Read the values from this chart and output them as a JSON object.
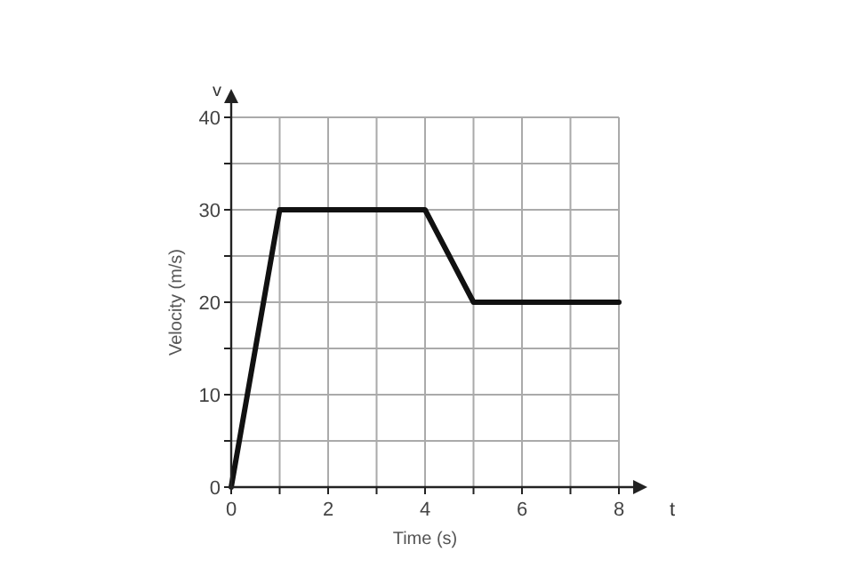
{
  "chart_data": {
    "type": "line",
    "xlabel": "Time (s)",
    "ylabel": "Velocity (m/s)",
    "annotations": [
      "v",
      "t"
    ],
    "x": [
      0,
      1,
      4,
      5,
      8
    ],
    "series": [
      {
        "color": "#111111",
        "values": [
          0,
          30,
          30,
          20,
          20
        ]
      }
    ],
    "xlim": [
      0,
      8
    ],
    "ylim": [
      0,
      40
    ],
    "xticks": [
      0,
      {
        "value": 1,
        "label": null
      },
      2,
      {
        "value": 3,
        "label": null
      },
      4,
      {
        "value": 5,
        "label": null
      },
      6,
      {
        "value": 7,
        "label": null
      },
      8
    ],
    "yticks": [
      0,
      {
        "value": 5,
        "label": null
      },
      10,
      {
        "value": 15,
        "label": null
      },
      20,
      {
        "value": 25,
        "label": null
      },
      30,
      {
        "value": 35,
        "label": null
      },
      40
    ],
    "grid": true,
    "marker": "none",
    "line_style": "solid"
  }
}
